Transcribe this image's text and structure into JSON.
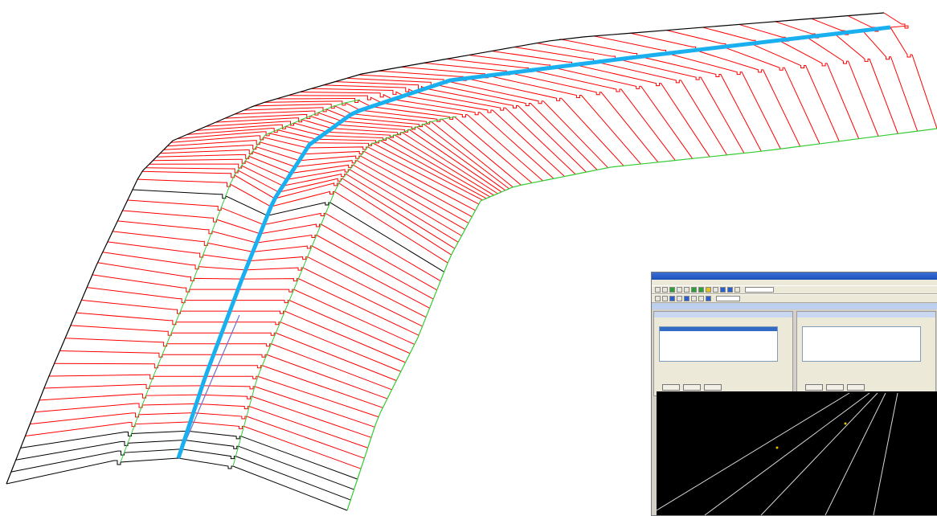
{
  "scene": {
    "colors": {
      "background": "#ffffff",
      "cross_sections": "#ff0000",
      "breaklines": "#000000",
      "centerline": "#1ab0f0",
      "toe_line": "#33cc33",
      "guide_line": "#7070cc"
    },
    "cross_section_count": 72
  },
  "inset": {
    "title": "",
    "menu": [
      "",
      "",
      "",
      "",
      "",
      ""
    ],
    "left_panel": {
      "title": "",
      "rows": [
        "",
        "",
        "",
        "",
        ""
      ],
      "buttons": [
        "",
        "",
        ""
      ]
    },
    "right_panel": {
      "title": "",
      "rows": [
        "",
        "",
        "",
        "",
        ""
      ],
      "buttons": [
        "",
        "",
        ""
      ]
    },
    "viewport_colors": {
      "background": "#000000",
      "lines": "#d8d8d8",
      "marker": "#e0c000"
    }
  }
}
